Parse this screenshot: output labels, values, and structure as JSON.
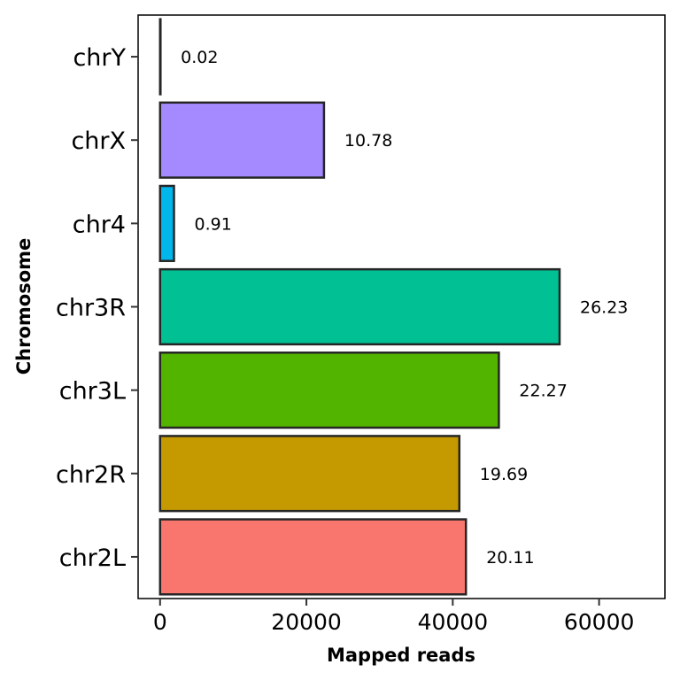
{
  "chart_data": {
    "type": "bar",
    "orientation": "horizontal",
    "xlabel": "Mapped reads",
    "ylabel": "Chromosome",
    "xlim": [
      -3000,
      69000
    ],
    "xticks": [
      0,
      20000,
      40000,
      60000
    ],
    "xtick_labels": [
      "0",
      "20000",
      "40000",
      "60000"
    ],
    "grid": false,
    "legend": "none",
    "categories": [
      "chr2L",
      "chr2R",
      "chr3L",
      "chr3R",
      "chr4",
      "chrX",
      "chrY"
    ],
    "values": [
      41800,
      40900,
      46300,
      54600,
      1900,
      22400,
      40
    ],
    "labels": [
      "20.11",
      "19.69",
      "22.27",
      "26.23",
      "0.91",
      "10.78",
      "0.02"
    ],
    "colors": [
      "#F8766D",
      "#C49A00",
      "#53B400",
      "#00C094",
      "#00B6EB",
      "#A58AFF",
      "#FB61D7"
    ]
  }
}
